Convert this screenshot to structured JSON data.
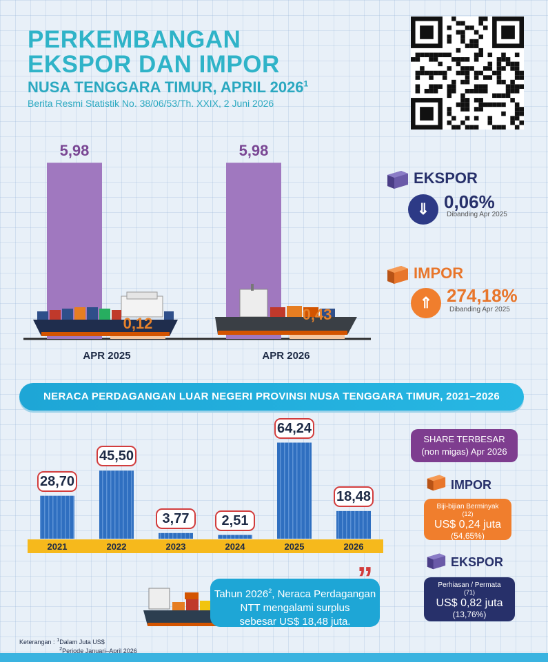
{
  "header": {
    "title_line1": "PERKEMBANGAN",
    "title_line2": "EKSPOR DAN IMPOR",
    "subtitle": "NUSA TENGGARA TIMUR, APRIL 2026",
    "subtitle_sup": "1",
    "release": "Berita Resmi Statistik No. 38/06/53/Th. XXIX, 2 Juni 2026"
  },
  "colors": {
    "ekspor": "#a078bf",
    "impor": "#f6c7a0",
    "ekspor_text": "#7a4794",
    "impor_text": "#e8822b",
    "navy": "#27306a",
    "orange": "#f07e2d",
    "container_blue": "#2f6fc0"
  },
  "chart_data": [
    {
      "type": "bar",
      "categories": [
        "APR 2025",
        "APR 2026"
      ],
      "series": [
        {
          "name": "EKSPOR",
          "values": [
            5.98,
            5.98
          ],
          "labels": [
            "5,98",
            "5,98"
          ]
        },
        {
          "name": "IMPOR",
          "values": [
            0.12,
            0.43
          ],
          "labels": [
            "0,12",
            "0,43"
          ]
        }
      ],
      "ylim": [
        0,
        6.5
      ]
    },
    {
      "type": "bar",
      "title": "NERACA PERDAGANGAN LUAR NEGERI PROVINSI NUSA TENGGARA TIMUR, 2021–2026",
      "categories": [
        "2021",
        "2022",
        "2023",
        "2024",
        "2025",
        "2026"
      ],
      "values": [
        28.7,
        45.5,
        3.77,
        2.51,
        64.24,
        18.48
      ],
      "labels": [
        "28,70",
        "45,50",
        "3,77",
        "2,51",
        "64,24",
        "18,48"
      ],
      "ylim": [
        0,
        70
      ]
    }
  ],
  "indicators": {
    "ekspor": {
      "title": "EKSPOR",
      "icon": "chevron-double-down-icon",
      "pct": "0,06%",
      "note": "Dibanding Apr 2025"
    },
    "impor": {
      "title": "IMPOR",
      "icon": "chevron-double-up-icon",
      "pct": "274,18%",
      "note": "Dibanding Apr 2025"
    }
  },
  "share": {
    "title_line1": "SHARE TERBESAR",
    "title_line2": "(non migas) Apr 2026",
    "impor": {
      "title": "IMPOR",
      "commodity": "Biji-bijian Berminyak",
      "code": "(12)",
      "value": "US$ 0,24 juta",
      "pct": "(54,65%)"
    },
    "ekspor": {
      "title": "EKSPOR",
      "commodity": "Perhiasan / Permata",
      "code": "(71)",
      "value": "US$ 0,82 juta",
      "pct": "(13,76%)"
    }
  },
  "callout": {
    "line1": "Tahun 2026",
    "sup": "2",
    "line1b": ", Neraca Perdagangan",
    "line2": "NTT mengalami surplus",
    "line3": "sebesar US$ 18,48 juta."
  },
  "notes": {
    "label": "Keterangan :",
    "n1_sup": "1",
    "n1": "Dalam Juta US$",
    "n2_sup": "2",
    "n2": "Periode Januari–April 2026"
  }
}
